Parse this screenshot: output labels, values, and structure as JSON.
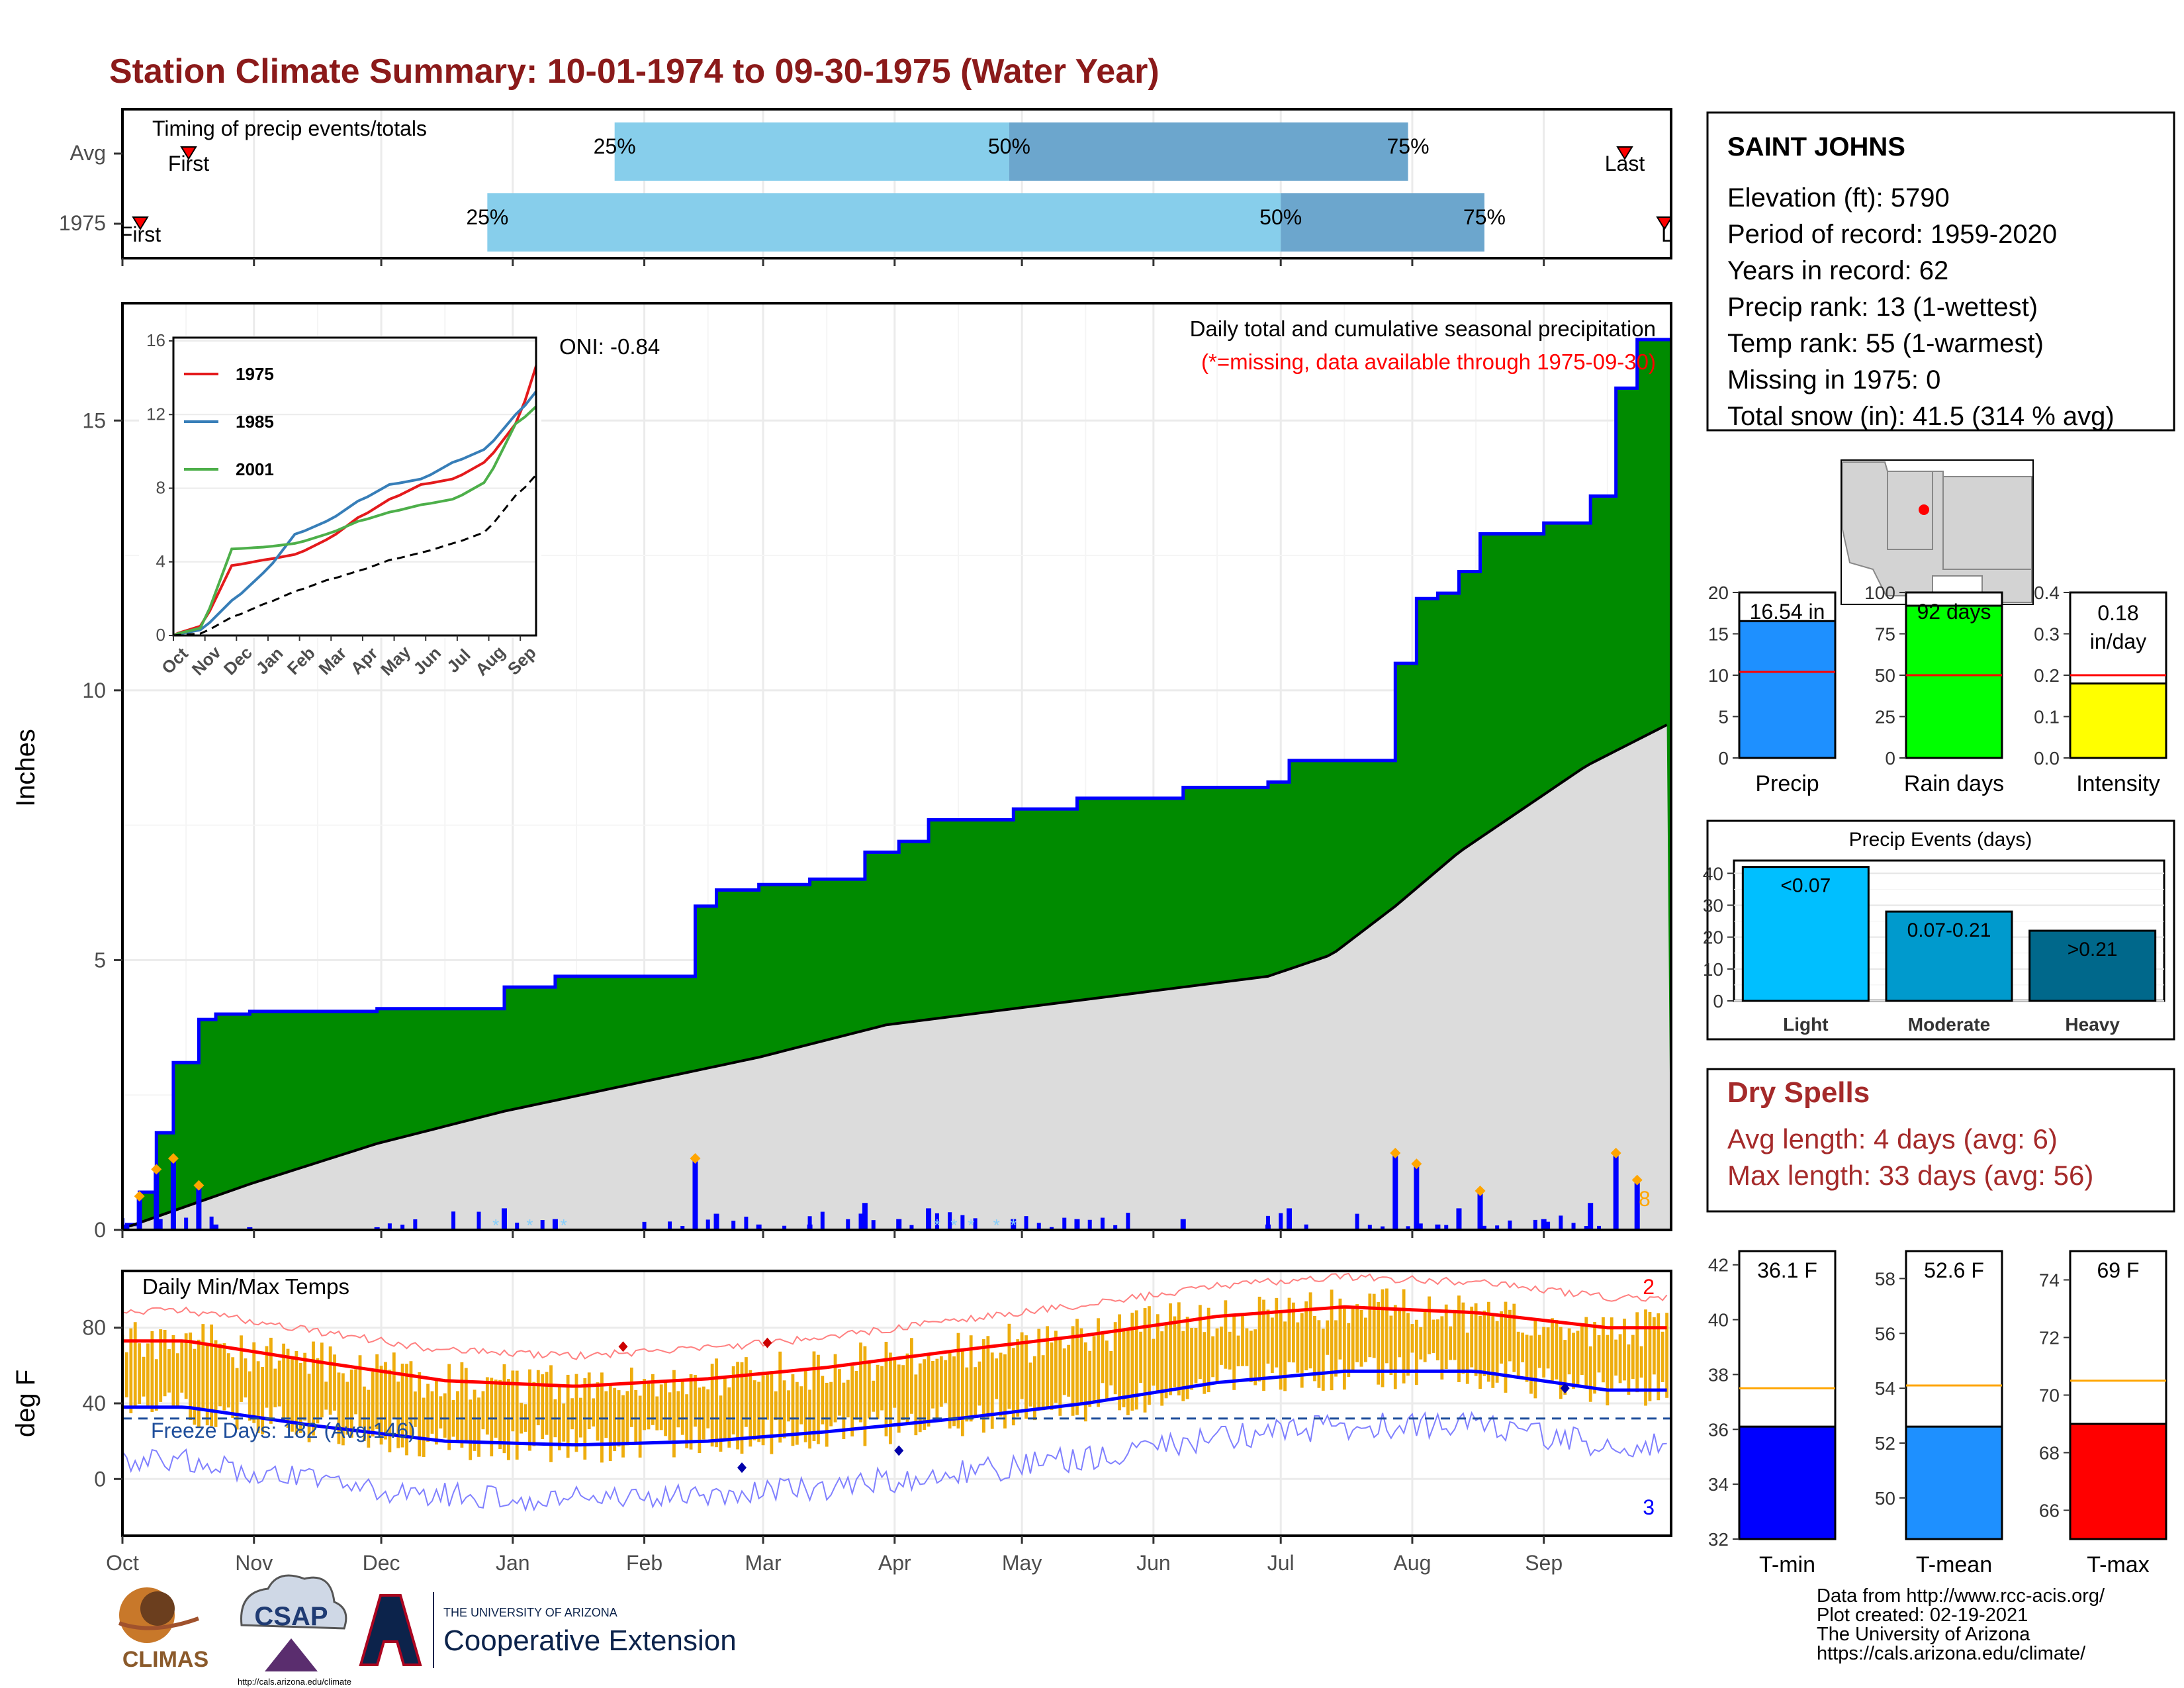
{
  "page_title": "Station Climate Summary: 10-01-1974 to 09-30-1975 (Water Year)",
  "month_labels": [
    "Oct",
    "Nov",
    "Dec",
    "Jan",
    "Feb",
    "Mar",
    "Apr",
    "May",
    "Jun",
    "Jul",
    "Aug",
    "Sep"
  ],
  "timing": {
    "title": "Timing of precip events/totals",
    "rows": [
      "Avg",
      "1975"
    ],
    "first_label": "First",
    "last_label": "Last",
    "last_label_clipped": "La",
    "pct_25": "25%",
    "pct_50": "50%",
    "pct_75": "75%",
    "colors": {
      "light": "#87CEEB",
      "dark": "#6CA6CD",
      "marker": "#ff0000"
    }
  },
  "precip_panel": {
    "ylabel": "Inches",
    "oni": "ONI: -0.84",
    "title": "Daily total and cumulative seasonal precipitation",
    "subtitle": "(*=missing, data available through 1975-09-30)",
    "extreme_count": "8",
    "yticks": [
      "0",
      "5",
      "10",
      "15"
    ],
    "colors": {
      "cumulative_fill": "#008B00",
      "cumulative_line": "#0000ff",
      "avg_fill": "#DCDCDC",
      "daily_bar": "#0000ff",
      "extreme": "#FFA500",
      "missing": "#87CEFA",
      "subtitle": "#ff0000"
    }
  },
  "inset": {
    "series": [
      {
        "name": "1975",
        "color": "#e41a1c"
      },
      {
        "name": "1985",
        "color": "#377eb8"
      },
      {
        "name": "2001",
        "color": "#4daf4a"
      }
    ],
    "yticks": [
      "0",
      "4",
      "8",
      "12",
      "16"
    ],
    "xticks": [
      "Oct",
      "Nov",
      "Dec",
      "Jan",
      "Feb",
      "Mar",
      "Apr",
      "May",
      "Jun",
      "Jul",
      "Aug",
      "Sep"
    ]
  },
  "temp_panel": {
    "ylabel": "deg F",
    "title": "Daily Min/Max Temps",
    "freeze": "Freeze Days: 182 (Avg:146)",
    "record_high_count": "2",
    "record_low_count": "3",
    "yticks": [
      "0",
      "40",
      "80"
    ],
    "colors": {
      "bar": "#EEAD0E",
      "max": "#ff0000",
      "min": "#0000ff",
      "freeze": "#1f4e9b"
    }
  },
  "station": {
    "name": "SAINT JOHNS",
    "lines": [
      "Elevation (ft): 5790",
      "Period of record: 1959-2020",
      "Years in record: 62",
      "Precip rank: 13 (1-wettest)",
      "Temp rank: 55 (1-warmest)",
      "Missing in 1975: 0",
      "Total snow (in): 41.5 (314 % avg)"
    ]
  },
  "mini_bars": [
    {
      "label": "Precip",
      "value_text": "16.54 in",
      "color": "#1E90FF",
      "yticks": [
        "0",
        "5",
        "10",
        "15",
        "20"
      ]
    },
    {
      "label": "Rain days",
      "value_text": "92 days",
      "color": "#00ff00",
      "yticks": [
        "0",
        "25",
        "50",
        "75",
        "100"
      ]
    },
    {
      "label": "Intensity",
      "value_text": "0.18",
      "value_text2": "in/day",
      "color": "#ffff00",
      "yticks": [
        "0.0",
        "0.1",
        "0.2",
        "0.3",
        "0.4"
      ]
    }
  ],
  "events": {
    "title": "Precip Events (days)",
    "categories": [
      "Light",
      "Moderate",
      "Heavy"
    ],
    "bar_labels": [
      "<0.07",
      "0.07-0.21",
      ">0.21"
    ],
    "yticks": [
      "0",
      "10",
      "20",
      "30",
      "40"
    ],
    "colors": [
      "#00BFFF",
      "#009ACD",
      "#00688B"
    ]
  },
  "dry_spells": {
    "title": "Dry Spells",
    "avg": "Avg length: 4 days (avg: 6)",
    "max": "Max length: 33 days (avg: 56)",
    "color": "#a52a2a"
  },
  "temp_bars": [
    {
      "label": "T-min",
      "value_text": "36.1 F",
      "color": "#0000ff",
      "yticks": [
        "32",
        "34",
        "36",
        "38",
        "40",
        "42"
      ]
    },
    {
      "label": "T-mean",
      "value_text": "52.6 F",
      "color": "#1E90FF",
      "yticks": [
        "50",
        "52",
        "54",
        "56",
        "58"
      ]
    },
    {
      "label": "T-max",
      "value_text": "69 F",
      "color": "#ff0000",
      "yticks": [
        "66",
        "68",
        "70",
        "72",
        "74"
      ]
    }
  ],
  "credits": [
    "Data from http://www.rcc-acis.org/",
    "Plot created: 02-19-2021",
    "The University of Arizona",
    "https://cals.arizona.edu/climate/"
  ],
  "logos": {
    "climas": "CLIMAS",
    "csap": "CSAP",
    "csap_url": "http://cals.arizona.edu/climate",
    "ua_small": "THE UNIVERSITY OF ARIZONA",
    "ua_big": "Cooperative Extension"
  },
  "chart_data": [
    {
      "type": "bar",
      "title": "Timing of precip events/totals",
      "categories": [
        "Avg",
        "1975"
      ],
      "series": [
        {
          "name": "25%",
          "values": [
            "Jan 25",
            "Dec 26"
          ]
        },
        {
          "name": "50%",
          "values": [
            "Apr 28",
            "Jul 1"
          ]
        },
        {
          "name": "75%",
          "values": [
            "Jul 31",
            "Aug 18"
          ]
        }
      ]
    },
    {
      "type": "area",
      "title": "Daily total and cumulative seasonal precipitation",
      "ylabel": "Inches",
      "ylim": [
        0,
        16.5
      ],
      "x_months": [
        "Oct",
        "Nov",
        "Dec",
        "Jan",
        "Feb",
        "Mar",
        "Apr",
        "May",
        "Jun",
        "Jul",
        "Aug",
        "Sep"
      ],
      "series": [
        {
          "name": "1975",
          "x": [
            1,
            4,
            8,
            12,
            18,
            22,
            30,
            60,
            90,
            102,
            120,
            135,
            140,
            150,
            162,
            175,
            183,
            190,
            210,
            225,
            250,
            270,
            275,
            300,
            305,
            310,
            315,
            320,
            335,
            346,
            352,
            357,
            365
          ],
          "values": [
            0.1,
            0.7,
            1.8,
            3.1,
            3.9,
            4.0,
            4.05,
            4.1,
            4.5,
            4.7,
            4.7,
            6.0,
            6.3,
            6.4,
            6.5,
            7.0,
            7.2,
            7.6,
            7.8,
            8.0,
            8.2,
            8.3,
            8.7,
            10.5,
            11.7,
            11.8,
            12.2,
            12.9,
            13.1,
            13.6,
            15.6,
            16.5,
            16.5
          ]
        },
        {
          "x": [
            1,
            30,
            60,
            90,
            120,
            150,
            180,
            210,
            240,
            270,
            285,
            300,
            315,
            330,
            345,
            365
          ],
          "values": [
            0.05,
            0.85,
            1.6,
            2.2,
            2.7,
            3.2,
            3.8,
            4.1,
            4.4,
            4.7,
            5.1,
            6.0,
            7.0,
            7.8,
            8.6,
            9.4
          ]
        }
      ]
    },
    {
      "type": "line",
      "series": [
        {
          "name": "1975",
          "x": [
            "Oct",
            "Nov",
            "Dec",
            "Jan",
            "Feb",
            "Mar",
            "Apr",
            "May",
            "Jun",
            "Jul",
            "Aug",
            "Sep"
          ],
          "values": [
            0.5,
            3.8,
            4.1,
            4.4,
            5.2,
            6.4,
            7.4,
            8.2,
            8.5,
            9.4,
            11.5,
            16.5
          ]
        },
        {
          "name": "1985",
          "x": [
            "Oct",
            "Nov",
            "Dec",
            "Jan",
            "Feb",
            "Mar",
            "Apr",
            "May",
            "Jun",
            "Jul",
            "Aug",
            "Sep"
          ],
          "values": [
            0.3,
            1.9,
            3.4,
            5.5,
            6.2,
            7.3,
            8.2,
            8.5,
            9.4,
            10.1,
            12.0,
            14.0
          ]
        },
        {
          "name": "2001",
          "x": [
            "Oct",
            "Nov",
            "Dec",
            "Jan",
            "Feb",
            "Mar",
            "Apr",
            "May",
            "Jun",
            "Jul",
            "Aug",
            "Sep"
          ],
          "values": [
            0.4,
            4.7,
            4.8,
            5.0,
            5.5,
            6.2,
            6.7,
            7.1,
            7.4,
            8.3,
            11.5,
            13.0
          ]
        },
        {
          "x": [
            "Oct",
            "Nov",
            "Dec",
            "Jan",
            "Feb",
            "Mar",
            "Apr",
            "May",
            "Jun",
            "Jul",
            "Aug",
            "Sep"
          ],
          "values": [
            0.1,
            1.0,
            1.7,
            2.4,
            3.0,
            3.5,
            4.1,
            4.5,
            5.0,
            5.6,
            7.6,
            9.4
          ]
        }
      ],
      "ylim": [
        0,
        16
      ]
    },
    {
      "type": "line",
      "title": "Daily Min/Max Temps",
      "ylabel": "deg F",
      "ylim": [
        -30,
        110
      ],
      "x": [
        "Oct",
        "Nov",
        "Dec",
        "Jan",
        "Feb",
        "Mar",
        "Apr",
        "May",
        "Jun",
        "Jul",
        "Aug",
        "Sep"
      ],
      "series": [
        {
          "values": [
            73,
            62,
            52,
            49,
            53,
            59,
            68,
            76,
            86,
            91,
            88,
            80
          ]
        },
        {
          "values": [
            38,
            28,
            20,
            18,
            20,
            25,
            32,
            40,
            51,
            57,
            57,
            47
          ]
        }
      ]
    },
    {
      "type": "bar",
      "categories": [
        "Precip",
        "Rain days",
        "Intensity"
      ],
      "values": [
        16.54,
        92,
        0.18
      ],
      "series": [
        {
          "values": [
            10.4,
            50,
            0.2
          ]
        }
      ]
    },
    {
      "type": "bar",
      "title": "Precip Events (days)",
      "categories": [
        "Light",
        "Moderate",
        "Heavy"
      ],
      "values": [
        42,
        28,
        22
      ],
      "ylim": [
        0,
        44
      ]
    },
    {
      "type": "bar",
      "categories": [
        "T-min",
        "T-mean",
        "T-max"
      ],
      "values": [
        36.1,
        52.6,
        69
      ],
      "series": [
        {
          "values": [
            37.5,
            54.1,
            70.5
          ]
        }
      ]
    }
  ]
}
